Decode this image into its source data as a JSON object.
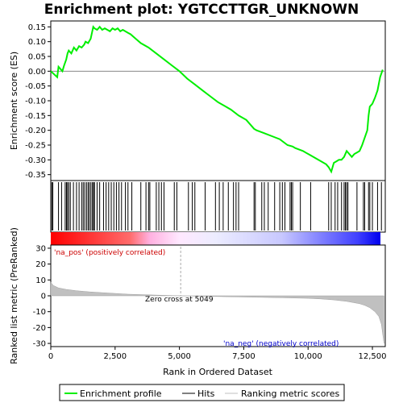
{
  "title": "Enrichment plot: YGTCCTTGR_UNKNOWN",
  "colors": {
    "es_line": "#00ee00",
    "hits": "#000000",
    "metric_fill": "#c0c0c0",
    "pos_text": "#cc0000",
    "neg_text": "#0000cc",
    "heat_pos": "#ff0000",
    "heat_neg": "#0000ff"
  },
  "annotations": {
    "pos_label": "'na_pos' (positively correlated)",
    "neg_label": "'na_neg' (negatively correlated)",
    "zero_cross": "Zero cross at 5049"
  },
  "legend": {
    "items": [
      {
        "label": "Enrichment profile",
        "kind": "line"
      },
      {
        "label": "Hits",
        "kind": "hit"
      },
      {
        "label": "Ranking metric scores",
        "kind": "metric"
      }
    ]
  },
  "chart_data": {
    "type": "line",
    "title": "Enrichment plot: YGTCCTTGR_UNKNOWN",
    "xlabel": "Rank in Ordered Dataset",
    "es_panel": {
      "ylabel": "Enrichment score (ES)",
      "ylim": [
        -0.37,
        0.17
      ],
      "yticks": [
        0.15,
        0.1,
        0.05,
        0.0,
        -0.05,
        -0.1,
        -0.15,
        -0.2,
        -0.25,
        -0.3,
        -0.35
      ],
      "ytick_labels": [
        "0.15",
        "0.10",
        "0.05",
        "0.00",
        "-0.05",
        "-0.10",
        "-0.15",
        "-0.20",
        "-0.25",
        "-0.30",
        "-0.35"
      ],
      "series": [
        {
          "x": [
            0,
            250,
            300,
            450,
            520,
            600,
            650,
            700,
            800,
            900,
            1000,
            1100,
            1200,
            1300,
            1350,
            1450,
            1550,
            1600,
            1650,
            1700,
            1800,
            1900,
            2000,
            2100,
            2200,
            2300,
            2400,
            2500,
            2600,
            2700,
            2800,
            3000,
            3100,
            3300,
            3500,
            3800,
            4100,
            4400,
            4700,
            5000,
            5300,
            5600,
            5900,
            6200,
            6500,
            6800,
            7000,
            7300,
            7600,
            7900,
            8000,
            8300,
            8600,
            8900,
            9200,
            9400,
            9500,
            9800,
            10100,
            10400,
            10700,
            10800,
            10900,
            11000,
            11100,
            11200,
            11300,
            11400,
            11500,
            11600,
            11700,
            11800,
            11900,
            12000,
            12100,
            12200,
            12300,
            12350,
            12400,
            12500,
            12600,
            12700,
            12800,
            12900
          ],
          "y": [
            0.0,
            -0.02,
            0.015,
            0.0,
            0.02,
            0.04,
            0.06,
            0.07,
            0.06,
            0.08,
            0.07,
            0.085,
            0.08,
            0.09,
            0.1,
            0.095,
            0.11,
            0.13,
            0.15,
            0.145,
            0.14,
            0.15,
            0.14,
            0.145,
            0.14,
            0.135,
            0.145,
            0.14,
            0.145,
            0.135,
            0.14,
            0.13,
            0.125,
            0.11,
            0.095,
            0.08,
            0.06,
            0.04,
            0.02,
            0.0,
            -0.025,
            -0.045,
            -0.065,
            -0.085,
            -0.105,
            -0.12,
            -0.13,
            -0.15,
            -0.165,
            -0.195,
            -0.2,
            -0.21,
            -0.22,
            -0.23,
            -0.25,
            -0.255,
            -0.26,
            -0.27,
            -0.285,
            -0.3,
            -0.315,
            -0.325,
            -0.34,
            -0.31,
            -0.305,
            -0.3,
            -0.3,
            -0.29,
            -0.27,
            -0.28,
            -0.29,
            -0.28,
            -0.275,
            -0.27,
            -0.25,
            -0.225,
            -0.2,
            -0.15,
            -0.12,
            -0.11,
            -0.09,
            -0.065,
            -0.02,
            0.005
          ]
        }
      ]
    },
    "metric_panel": {
      "ylabel": "Ranked list metric (PreRanked)",
      "ylim": [
        -32,
        32
      ],
      "yticks": [
        30,
        20,
        10,
        0,
        -10,
        -20,
        -30
      ],
      "ytick_labels": [
        "30",
        "20",
        "10",
        "0",
        "-10",
        "-20",
        "-30"
      ],
      "zero_cross": 5049,
      "x": [
        0,
        100,
        300,
        600,
        1000,
        1500,
        2000,
        3000,
        4000,
        5049,
        6000,
        7000,
        8000,
        9000,
        10000,
        10500,
        11000,
        11500,
        12000,
        12200,
        12400,
        12600,
        12750,
        12850,
        12950
      ],
      "values": [
        8.5,
        6.5,
        5.0,
        4.0,
        3.2,
        2.5,
        2.0,
        1.0,
        0.5,
        0.0,
        -0.3,
        -0.6,
        -0.9,
        -1.2,
        -1.6,
        -2.0,
        -2.6,
        -3.5,
        -5.0,
        -6.0,
        -7.5,
        -10.0,
        -13.0,
        -18.0,
        -30.0
      ]
    },
    "x_axis": {
      "xlim": [
        0,
        13000
      ],
      "xticks": [
        0,
        2500,
        5000,
        7500,
        10000,
        12500
      ],
      "xtick_labels": [
        "0",
        "2,500",
        "5,000",
        "7,500",
        "10,000",
        "12,500"
      ]
    },
    "hits": [
      40,
      80,
      300,
      420,
      560,
      610,
      650,
      700,
      760,
      880,
      1000,
      1100,
      1200,
      1260,
      1320,
      1390,
      1450,
      1500,
      1560,
      1620,
      1660,
      1700,
      1800,
      1900,
      2050,
      2150,
      2250,
      2350,
      2450,
      2550,
      2650,
      2750,
      2900,
      3000,
      3150,
      3500,
      3700,
      3800,
      3850,
      4100,
      4200,
      4300,
      4400,
      4800,
      4900,
      5350,
      5500,
      5600,
      6000,
      6400,
      6550,
      6700,
      6900,
      7100,
      7200,
      7300,
      7900,
      7950,
      8200,
      8300,
      8450,
      8700,
      8900,
      9000,
      9100,
      9300,
      9350,
      9400,
      9700,
      10100,
      10800,
      10900,
      11050,
      11150,
      11300,
      11400,
      11450,
      11500,
      11550,
      11900,
      12150,
      12200,
      12350,
      12400,
      12500,
      12700,
      12850
    ]
  }
}
